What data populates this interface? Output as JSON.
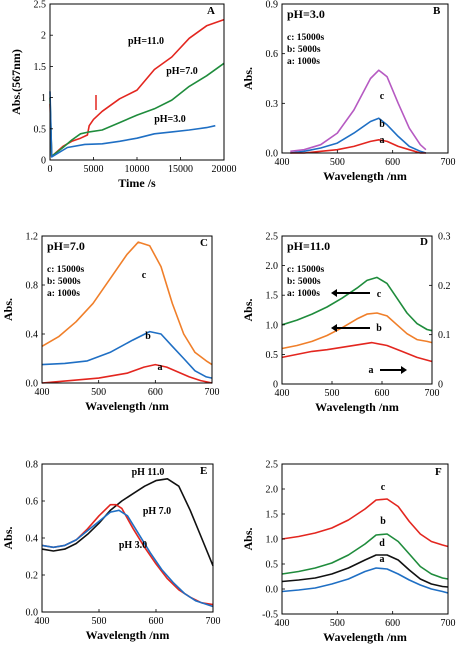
{
  "chart_data": [
    {
      "panel": "A",
      "type": "line",
      "xlabel": "Time /s",
      "ylabel": "Abs.(567nm)",
      "xlim": [
        0,
        20000
      ],
      "ylim": [
        0,
        2.5
      ],
      "xticks": [
        "0",
        "5000",
        "10000",
        "15000",
        "20000"
      ],
      "yticks": [
        "0",
        "0.5",
        "1",
        "1.5",
        "2",
        "2.5"
      ],
      "series": [
        {
          "name": "pH=11.0",
          "color": "#e3261f",
          "x": [
            0,
            200,
            1500,
            2500,
            3500,
            4300,
            4500,
            5000,
            6000,
            8000,
            10000,
            12000,
            14000,
            16000,
            18000,
            20000
          ],
          "y": [
            0.9,
            0.06,
            0.22,
            0.3,
            0.35,
            0.4,
            0.55,
            0.65,
            0.78,
            0.98,
            1.12,
            1.45,
            1.65,
            1.95,
            2.15,
            2.25
          ]
        },
        {
          "name": "pH=7.0",
          "color": "#1f8c3c",
          "x": [
            0,
            200,
            1500,
            2500,
            3500,
            4500,
            6000,
            8000,
            10000,
            12000,
            14000,
            16000,
            18000,
            20000
          ],
          "y": [
            1.0,
            0.06,
            0.2,
            0.32,
            0.42,
            0.45,
            0.48,
            0.6,
            0.72,
            0.82,
            0.96,
            1.18,
            1.35,
            1.55
          ]
        },
        {
          "name": "pH=3.0",
          "color": "#1f6fc4",
          "x": [
            0,
            200,
            2000,
            4000,
            6000,
            8000,
            10000,
            12000,
            14000,
            16000,
            18000,
            19000
          ],
          "y": [
            1.1,
            0.05,
            0.2,
            0.25,
            0.26,
            0.3,
            0.35,
            0.42,
            0.45,
            0.48,
            0.52,
            0.55
          ]
        }
      ]
    },
    {
      "panel": "B",
      "type": "line",
      "xlabel": "Wavelength /nm",
      "ylabel": "Abs.",
      "xlim": [
        400,
        700
      ],
      "ylim": [
        0,
        0.9
      ],
      "xticks": [
        "400",
        "500",
        "600",
        "700"
      ],
      "yticks": [
        "0.0",
        "0.3",
        "0.6",
        "0.9"
      ],
      "annotations": [
        "pH=3.0",
        "c: 15000s",
        "b: 5000s",
        "a: 1000s"
      ],
      "series": [
        {
          "name": "c",
          "color": "#b65ac2",
          "x": [
            415,
            440,
            470,
            500,
            530,
            560,
            575,
            590,
            610,
            630,
            650,
            660
          ],
          "y": [
            0.01,
            0.02,
            0.05,
            0.12,
            0.26,
            0.45,
            0.5,
            0.46,
            0.3,
            0.15,
            0.05,
            0.02
          ]
        },
        {
          "name": "b",
          "color": "#1f6fc4",
          "x": [
            415,
            440,
            470,
            500,
            530,
            560,
            575,
            590,
            610,
            630,
            650,
            660
          ],
          "y": [
            0.0,
            0.01,
            0.03,
            0.06,
            0.12,
            0.19,
            0.21,
            0.17,
            0.1,
            0.04,
            0.01,
            0.0
          ]
        },
        {
          "name": "a",
          "color": "#e3261f",
          "x": [
            415,
            440,
            470,
            500,
            530,
            560,
            575,
            590,
            610,
            630,
            650,
            660
          ],
          "y": [
            0.0,
            0.0,
            0.01,
            0.02,
            0.04,
            0.07,
            0.08,
            0.07,
            0.04,
            0.02,
            0.0,
            0.0
          ]
        }
      ]
    },
    {
      "panel": "C",
      "type": "line",
      "xlabel": "Wavelength /nm",
      "ylabel": "Abs.",
      "xlim": [
        400,
        700
      ],
      "ylim": [
        0,
        1.2
      ],
      "xticks": [
        "400",
        "500",
        "600",
        "700"
      ],
      "yticks": [
        "0.0",
        "0.4",
        "0.8",
        "1.2"
      ],
      "annotations": [
        "pH=7.0",
        "c: 15000s",
        "b: 5000s",
        "a: 1000s"
      ],
      "series": [
        {
          "name": "c",
          "color": "#f07f2a",
          "x": [
            400,
            430,
            460,
            490,
            520,
            550,
            570,
            590,
            610,
            630,
            650,
            670,
            690,
            700
          ],
          "y": [
            0.3,
            0.38,
            0.5,
            0.65,
            0.85,
            1.05,
            1.15,
            1.12,
            0.95,
            0.65,
            0.4,
            0.25,
            0.18,
            0.15
          ]
        },
        {
          "name": "b",
          "color": "#1f6fc4",
          "x": [
            400,
            440,
            480,
            520,
            560,
            590,
            610,
            630,
            650,
            670,
            690,
            700
          ],
          "y": [
            0.15,
            0.16,
            0.18,
            0.25,
            0.35,
            0.42,
            0.4,
            0.3,
            0.2,
            0.1,
            0.05,
            0.04
          ]
        },
        {
          "name": "a",
          "color": "#e3261f",
          "x": [
            400,
            450,
            500,
            550,
            580,
            600,
            620,
            640,
            660,
            680,
            700
          ],
          "y": [
            0.0,
            0.02,
            0.04,
            0.08,
            0.13,
            0.15,
            0.13,
            0.09,
            0.05,
            0.02,
            0.0
          ]
        }
      ]
    },
    {
      "panel": "D",
      "type": "line",
      "xlabel": "Wavelength /nm",
      "ylabel": "Abs.",
      "xlim": [
        400,
        700
      ],
      "ylim": [
        0,
        2.5
      ],
      "y2lim": [
        0,
        0.3
      ],
      "xticks": [
        "400",
        "500",
        "600",
        "700"
      ],
      "yticks": [
        "0",
        "0.5",
        "1.0",
        "1.5",
        "2.0",
        "2.5"
      ],
      "y2ticks": [
        "0",
        "0.1",
        "0.2",
        "0.3"
      ],
      "annotations": [
        "pH=11.0",
        "c: 15000s",
        "b: 5000s",
        "a: 1000s"
      ],
      "series": [
        {
          "name": "c",
          "color": "#1f8c3c",
          "x": [
            400,
            430,
            460,
            490,
            520,
            550,
            570,
            590,
            610,
            630,
            650,
            670,
            690,
            700
          ],
          "y": [
            1.0,
            1.08,
            1.18,
            1.3,
            1.45,
            1.62,
            1.75,
            1.8,
            1.7,
            1.45,
            1.2,
            1.02,
            0.92,
            0.9
          ]
        },
        {
          "name": "b",
          "color": "#f07f2a",
          "x": [
            400,
            430,
            460,
            490,
            520,
            550,
            570,
            590,
            610,
            630,
            650,
            670,
            690,
            700
          ],
          "y": [
            0.6,
            0.65,
            0.72,
            0.82,
            0.95,
            1.1,
            1.18,
            1.2,
            1.15,
            1.0,
            0.85,
            0.75,
            0.72,
            0.7
          ]
        },
        {
          "name": "a",
          "color": "#e3261f",
          "x": [
            400,
            430,
            460,
            490,
            520,
            550,
            580,
            610,
            640,
            670,
            700
          ],
          "y": [
            0.45,
            0.5,
            0.55,
            0.58,
            0.62,
            0.66,
            0.7,
            0.65,
            0.55,
            0.45,
            0.38
          ]
        }
      ]
    },
    {
      "panel": "E",
      "type": "line",
      "xlabel": "Wavelength /nm",
      "ylabel": "Abs.",
      "xlim": [
        400,
        700
      ],
      "ylim": [
        0,
        0.8
      ],
      "xticks": [
        "400",
        "500",
        "600",
        "700"
      ],
      "yticks": [
        "0.0",
        "0.2",
        "0.4",
        "0.6",
        "0.8"
      ],
      "series": [
        {
          "name": "pH 11.0",
          "color": "#111111",
          "x": [
            400,
            420,
            440,
            460,
            480,
            500,
            520,
            540,
            560,
            580,
            600,
            620,
            640,
            660,
            680,
            700
          ],
          "y": [
            0.34,
            0.33,
            0.34,
            0.37,
            0.42,
            0.48,
            0.55,
            0.6,
            0.64,
            0.68,
            0.71,
            0.72,
            0.68,
            0.55,
            0.4,
            0.25
          ]
        },
        {
          "name": "pH 7.0",
          "color": "#e3261f",
          "x": [
            400,
            420,
            440,
            460,
            480,
            500,
            520,
            530,
            540,
            560,
            580,
            600,
            620,
            640,
            660,
            680,
            700
          ],
          "y": [
            0.36,
            0.35,
            0.36,
            0.39,
            0.45,
            0.52,
            0.58,
            0.58,
            0.56,
            0.45,
            0.35,
            0.26,
            0.18,
            0.12,
            0.08,
            0.05,
            0.04
          ]
        },
        {
          "name": "pH 3.0",
          "color": "#1f6fc4",
          "x": [
            400,
            420,
            440,
            460,
            480,
            500,
            520,
            535,
            550,
            570,
            590,
            610,
            630,
            650,
            670,
            690,
            700
          ],
          "y": [
            0.36,
            0.35,
            0.36,
            0.39,
            0.44,
            0.49,
            0.54,
            0.55,
            0.52,
            0.42,
            0.32,
            0.23,
            0.16,
            0.1,
            0.06,
            0.04,
            0.03
          ]
        }
      ]
    },
    {
      "panel": "F",
      "type": "line",
      "xlabel": "Wavelength /nm",
      "ylabel": "Abs.",
      "xlim": [
        400,
        700
      ],
      "ylim": [
        -0.5,
        2.5
      ],
      "xticks": [
        "400",
        "500",
        "600",
        "700"
      ],
      "yticks": [
        "-0.5",
        "0.0",
        "0.5",
        "1.0",
        "1.5",
        "2.0",
        "2.5"
      ],
      "series": [
        {
          "name": "c",
          "color": "#e3261f",
          "x": [
            400,
            430,
            460,
            490,
            520,
            550,
            570,
            590,
            610,
            630,
            650,
            670,
            690,
            700
          ],
          "y": [
            1.0,
            1.05,
            1.12,
            1.22,
            1.38,
            1.6,
            1.78,
            1.8,
            1.65,
            1.35,
            1.1,
            0.95,
            0.88,
            0.85
          ]
        },
        {
          "name": "b",
          "color": "#1f8c3c",
          "x": [
            400,
            430,
            460,
            490,
            520,
            550,
            570,
            590,
            610,
            630,
            650,
            670,
            690,
            700
          ],
          "y": [
            0.3,
            0.35,
            0.42,
            0.52,
            0.68,
            0.9,
            1.08,
            1.1,
            0.95,
            0.7,
            0.45,
            0.3,
            0.22,
            0.2
          ]
        },
        {
          "name": "d",
          "color": "#111111",
          "x": [
            400,
            430,
            460,
            490,
            520,
            550,
            570,
            590,
            610,
            630,
            650,
            670,
            690,
            700
          ],
          "y": [
            0.15,
            0.18,
            0.22,
            0.3,
            0.42,
            0.58,
            0.68,
            0.68,
            0.58,
            0.38,
            0.2,
            0.1,
            0.05,
            0.04
          ]
        },
        {
          "name": "a",
          "color": "#1f6fc4",
          "x": [
            400,
            430,
            460,
            490,
            520,
            550,
            570,
            590,
            610,
            630,
            650,
            670,
            690,
            700
          ],
          "y": [
            -0.05,
            -0.02,
            0.02,
            0.1,
            0.2,
            0.35,
            0.42,
            0.4,
            0.3,
            0.18,
            0.08,
            0.0,
            -0.05,
            -0.08
          ]
        }
      ]
    }
  ]
}
